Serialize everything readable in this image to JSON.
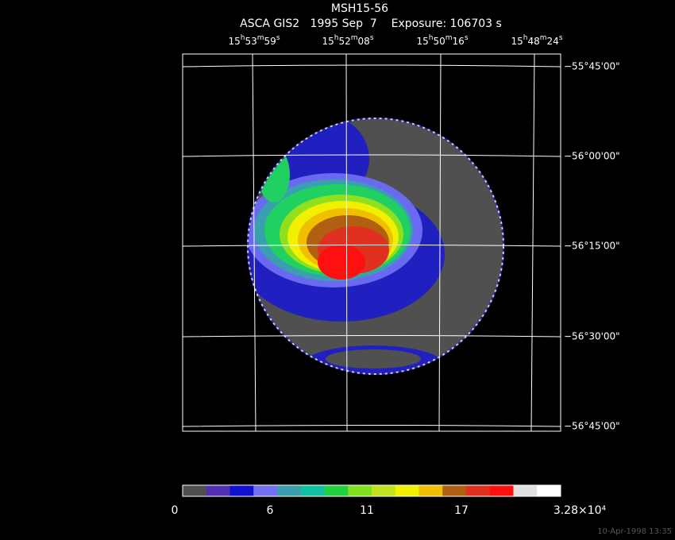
{
  "title": "MSH15-56",
  "subtitle": "ASCA GIS2   1995 Sep  7    Exposure: 106703 s",
  "ra_labels": [
    "15h53m59s",
    "15h52m08s",
    "15h50m16s",
    "15h48m24s"
  ],
  "dec_labels": [
    "−55°45'00\"",
    "−56°00'00\"",
    "−56°15'00\"",
    "−56°30'00\"",
    "−56°45'00\""
  ],
  "colorbar_labels": [
    "0",
    "6",
    "11",
    "17",
    "3.28×10⁴"
  ],
  "footer": "10-Apr-1998 13:35"
}
